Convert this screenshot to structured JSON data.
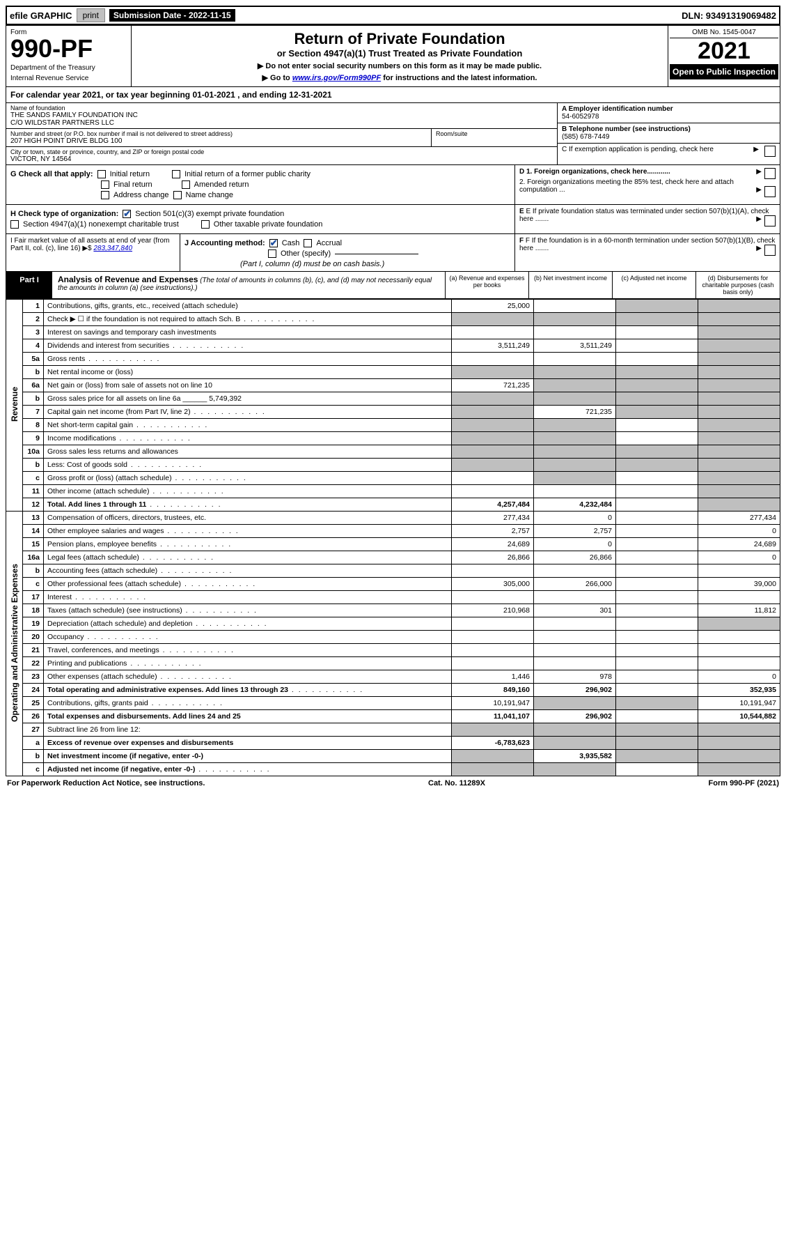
{
  "topbar": {
    "efile": "efile GRAPHIC",
    "print": "print",
    "subdate_label": "Submission Date - 2022-11-15",
    "dln": "DLN: 93491319069482"
  },
  "header": {
    "form_label": "Form",
    "form_number": "990-PF",
    "dept1": "Department of the Treasury",
    "dept2": "Internal Revenue Service",
    "title": "Return of Private Foundation",
    "subtitle": "or Section 4947(a)(1) Trust Treated as Private Foundation",
    "note1": "▶ Do not enter social security numbers on this form as it may be made public.",
    "note2_pre": "▶ Go to ",
    "note2_link": "www.irs.gov/Form990PF",
    "note2_post": " for instructions and the latest information.",
    "omb": "OMB No. 1545-0047",
    "year": "2021",
    "open": "Open to Public Inspection"
  },
  "calyear": "For calendar year 2021, or tax year beginning 01-01-2021          , and ending 12-31-2021",
  "info": {
    "name_label": "Name of foundation",
    "name1": "THE SANDS FAMILY FOUNDATION INC",
    "name2": "C/O WILDSTAR PARTNERS LLC",
    "addr_label": "Number and street (or P.O. box number if mail is not delivered to street address)",
    "addr": "207 HIGH POINT DRIVE BLDG 100",
    "room_label": "Room/suite",
    "city_label": "City or town, state or province, country, and ZIP or foreign postal code",
    "city": "VICTOR, NY  14564",
    "ein_label": "A Employer identification number",
    "ein": "54-6052978",
    "phone_label": "B Telephone number (see instructions)",
    "phone": "(585) 678-7449",
    "c_label": "C If exemption application is pending, check here"
  },
  "checks": {
    "g_label": "G Check all that apply:",
    "g_initial": "Initial return",
    "g_initial_former": "Initial return of a former public charity",
    "g_final": "Final return",
    "g_amended": "Amended return",
    "g_address": "Address change",
    "g_name": "Name change",
    "d1": "D 1. Foreign organizations, check here............",
    "d2": "2. Foreign organizations meeting the 85% test, check here and attach computation ...",
    "e": "E  If private foundation status was terminated under section 507(b)(1)(A), check here .......",
    "h_label": "H Check type of organization:",
    "h_501c3": "Section 501(c)(3) exempt private foundation",
    "h_4947": "Section 4947(a)(1) nonexempt charitable trust",
    "h_other": "Other taxable private foundation",
    "i_label": "I Fair market value of all assets at end of year (from Part II, col. (c), line 16) ▶$",
    "i_value": "283,347,840",
    "j_label": "J Accounting method:",
    "j_cash": "Cash",
    "j_accrual": "Accrual",
    "j_other": "Other (specify)",
    "j_note": "(Part I, column (d) must be on cash basis.)",
    "f": "F  If the foundation is in a 60-month termination under section 507(b)(1)(B), check here ......."
  },
  "part1": {
    "label": "Part I",
    "title": "Analysis of Revenue and Expenses",
    "subtitle": "(The total of amounts in columns (b), (c), and (d) may not necessarily equal the amounts in column (a) (see instructions).)",
    "col_a": "(a) Revenue and expenses per books",
    "col_b": "(b) Net investment income",
    "col_c": "(c) Adjusted net income",
    "col_d": "(d) Disbursements for charitable purposes (cash basis only)"
  },
  "side": {
    "revenue": "Revenue",
    "opexp": "Operating and Administrative Expenses"
  },
  "rows": [
    {
      "n": "1",
      "d": "Contributions, gifts, grants, etc., received (attach schedule)",
      "a": "25,000",
      "b": "",
      "c": "s",
      "dd": "s"
    },
    {
      "n": "2",
      "d": "Check ▶ ☐ if the foundation is not required to attach Sch. B",
      "a": "s",
      "b": "s",
      "c": "s",
      "dd": "s",
      "dots": true
    },
    {
      "n": "3",
      "d": "Interest on savings and temporary cash investments",
      "a": "",
      "b": "",
      "c": "",
      "dd": "s"
    },
    {
      "n": "4",
      "d": "Dividends and interest from securities",
      "a": "3,511,249",
      "b": "3,511,249",
      "c": "",
      "dd": "s",
      "dots": true
    },
    {
      "n": "5a",
      "d": "Gross rents",
      "a": "",
      "b": "",
      "c": "",
      "dd": "s",
      "dots": true
    },
    {
      "n": "b",
      "d": "Net rental income or (loss)",
      "a": "s",
      "b": "s",
      "c": "s",
      "dd": "s",
      "inset": true
    },
    {
      "n": "6a",
      "d": "Net gain or (loss) from sale of assets not on line 10",
      "a": "721,235",
      "b": "s",
      "c": "s",
      "dd": "s"
    },
    {
      "n": "b",
      "d": "Gross sales price for all assets on line 6a ______ 5,749,392",
      "a": "s",
      "b": "s",
      "c": "s",
      "dd": "s"
    },
    {
      "n": "7",
      "d": "Capital gain net income (from Part IV, line 2)",
      "a": "s",
      "b": "721,235",
      "c": "s",
      "dd": "s",
      "dots": true
    },
    {
      "n": "8",
      "d": "Net short-term capital gain",
      "a": "s",
      "b": "s",
      "c": "",
      "dd": "s",
      "dots": true
    },
    {
      "n": "9",
      "d": "Income modifications",
      "a": "s",
      "b": "s",
      "c": "",
      "dd": "s",
      "dots": true
    },
    {
      "n": "10a",
      "d": "Gross sales less returns and allowances",
      "a": "s",
      "b": "s",
      "c": "s",
      "dd": "s",
      "inset": true
    },
    {
      "n": "b",
      "d": "Less: Cost of goods sold",
      "a": "s",
      "b": "s",
      "c": "s",
      "dd": "s",
      "inset": true,
      "dots": true
    },
    {
      "n": "c",
      "d": "Gross profit or (loss) (attach schedule)",
      "a": "",
      "b": "s",
      "c": "",
      "dd": "s",
      "dots": true
    },
    {
      "n": "11",
      "d": "Other income (attach schedule)",
      "a": "",
      "b": "",
      "c": "",
      "dd": "s",
      "dots": true
    },
    {
      "n": "12",
      "d": "Total. Add lines 1 through 11",
      "a": "4,257,484",
      "b": "4,232,484",
      "c": "",
      "dd": "s",
      "bold": true,
      "dots": true
    }
  ],
  "exp_rows": [
    {
      "n": "13",
      "d": "Compensation of officers, directors, trustees, etc.",
      "a": "277,434",
      "b": "0",
      "c": "",
      "dd": "277,434"
    },
    {
      "n": "14",
      "d": "Other employee salaries and wages",
      "a": "2,757",
      "b": "2,757",
      "c": "",
      "dd": "0",
      "dots": true
    },
    {
      "n": "15",
      "d": "Pension plans, employee benefits",
      "a": "24,689",
      "b": "0",
      "c": "",
      "dd": "24,689",
      "dots": true
    },
    {
      "n": "16a",
      "d": "Legal fees (attach schedule)",
      "a": "26,866",
      "b": "26,866",
      "c": "",
      "dd": "0",
      "dots": true
    },
    {
      "n": "b",
      "d": "Accounting fees (attach schedule)",
      "a": "",
      "b": "",
      "c": "",
      "dd": "",
      "dots": true
    },
    {
      "n": "c",
      "d": "Other professional fees (attach schedule)",
      "a": "305,000",
      "b": "266,000",
      "c": "",
      "dd": "39,000",
      "dots": true
    },
    {
      "n": "17",
      "d": "Interest",
      "a": "",
      "b": "",
      "c": "",
      "dd": "",
      "dots": true
    },
    {
      "n": "18",
      "d": "Taxes (attach schedule) (see instructions)",
      "a": "210,968",
      "b": "301",
      "c": "",
      "dd": "11,812",
      "dots": true
    },
    {
      "n": "19",
      "d": "Depreciation (attach schedule) and depletion",
      "a": "",
      "b": "",
      "c": "",
      "dd": "s",
      "dots": true
    },
    {
      "n": "20",
      "d": "Occupancy",
      "a": "",
      "b": "",
      "c": "",
      "dd": "",
      "dots": true
    },
    {
      "n": "21",
      "d": "Travel, conferences, and meetings",
      "a": "",
      "b": "",
      "c": "",
      "dd": "",
      "dots": true
    },
    {
      "n": "22",
      "d": "Printing and publications",
      "a": "",
      "b": "",
      "c": "",
      "dd": "",
      "dots": true
    },
    {
      "n": "23",
      "d": "Other expenses (attach schedule)",
      "a": "1,446",
      "b": "978",
      "c": "",
      "dd": "0",
      "dots": true
    },
    {
      "n": "24",
      "d": "Total operating and administrative expenses. Add lines 13 through 23",
      "a": "849,160",
      "b": "296,902",
      "c": "",
      "dd": "352,935",
      "bold": true,
      "dots": true
    },
    {
      "n": "25",
      "d": "Contributions, gifts, grants paid",
      "a": "10,191,947",
      "b": "s",
      "c": "s",
      "dd": "10,191,947",
      "dots": true
    },
    {
      "n": "26",
      "d": "Total expenses and disbursements. Add lines 24 and 25",
      "a": "11,041,107",
      "b": "296,902",
      "c": "",
      "dd": "10,544,882",
      "bold": true
    },
    {
      "n": "27",
      "d": "Subtract line 26 from line 12:",
      "a": "s",
      "b": "s",
      "c": "s",
      "dd": "s"
    },
    {
      "n": "a",
      "d": "Excess of revenue over expenses and disbursements",
      "a": "-6,783,623",
      "b": "s",
      "c": "s",
      "dd": "s",
      "bold": true
    },
    {
      "n": "b",
      "d": "Net investment income (if negative, enter -0-)",
      "a": "s",
      "b": "3,935,582",
      "c": "s",
      "dd": "s",
      "bold": true
    },
    {
      "n": "c",
      "d": "Adjusted net income (if negative, enter -0-)",
      "a": "s",
      "b": "s",
      "c": "",
      "dd": "s",
      "bold": true,
      "dots": true
    }
  ],
  "footer": {
    "left": "For Paperwork Reduction Act Notice, see instructions.",
    "mid": "Cat. No. 11289X",
    "right": "Form 990-PF (2021)"
  }
}
